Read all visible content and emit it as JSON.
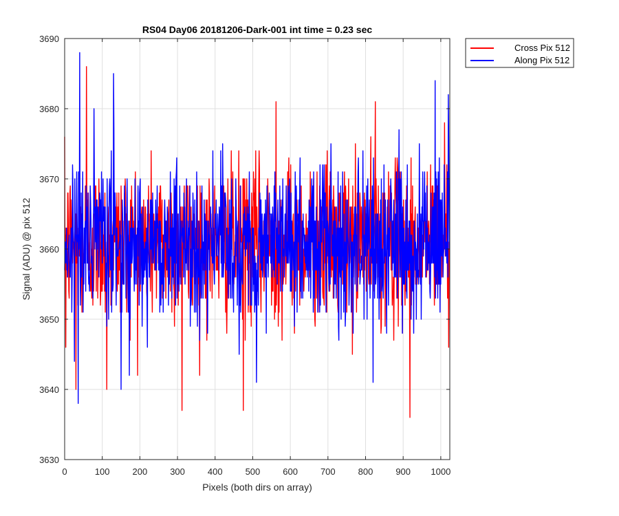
{
  "chart_data": {
    "type": "line",
    "title": "RS04 Day06 20181206-Dark-001 int time = 0.23 sec",
    "xlabel": "Pixels (both dirs on array)",
    "ylabel": "Signal (ADU) @ pix 512",
    "xlim": [
      0,
      1024
    ],
    "ylim": [
      3630,
      3690
    ],
    "xticks": [
      0,
      100,
      200,
      300,
      400,
      500,
      600,
      700,
      800,
      900,
      1000
    ],
    "yticks": [
      3630,
      3640,
      3650,
      3660,
      3670,
      3680,
      3690
    ],
    "grid": true,
    "legend": "outside-top-right",
    "points_per_series": 1024,
    "series": [
      {
        "name": "Cross Pix 512",
        "color": "#ff0000",
        "mean": 3661,
        "std": 5.5,
        "notable_points": [
          {
            "x": 3,
            "y": 3646
          },
          {
            "x": 30,
            "y": 3640
          },
          {
            "x": 58,
            "y": 3686
          },
          {
            "x": 112,
            "y": 3640
          },
          {
            "x": 312,
            "y": 3637
          },
          {
            "x": 475,
            "y": 3637
          },
          {
            "x": 562,
            "y": 3681
          },
          {
            "x": 826,
            "y": 3681
          },
          {
            "x": 918,
            "y": 3636
          },
          {
            "x": 1010,
            "y": 3678
          }
        ]
      },
      {
        "name": "Along Pix 512",
        "color": "#0000ff",
        "mean": 3661,
        "std": 5.5,
        "notable_points": [
          {
            "x": 36,
            "y": 3638
          },
          {
            "x": 40,
            "y": 3688
          },
          {
            "x": 130,
            "y": 3685
          },
          {
            "x": 150,
            "y": 3640
          },
          {
            "x": 510,
            "y": 3641
          },
          {
            "x": 820,
            "y": 3641
          },
          {
            "x": 985,
            "y": 3684
          },
          {
            "x": 1020,
            "y": 3682
          }
        ]
      }
    ]
  }
}
